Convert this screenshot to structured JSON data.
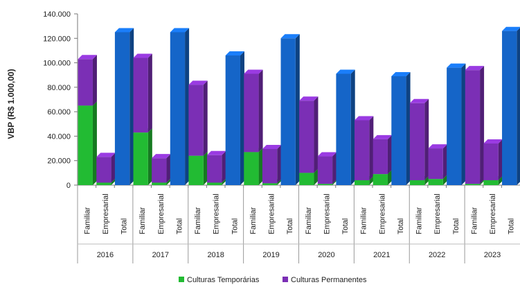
{
  "chart_data": {
    "type": "bar",
    "stacked": true,
    "style": "3d",
    "title": "",
    "ylabel": "VBP (R$ 1.000,00)",
    "xlabel": "",
    "ylim": [
      0,
      140000
    ],
    "yticks": [
      0,
      20000,
      40000,
      60000,
      80000,
      100000,
      120000,
      140000
    ],
    "ytick_labels": [
      "0",
      "20.000",
      "40.000",
      "60.000",
      "80.000",
      "100.000",
      "120.000",
      "140.000"
    ],
    "grid": false,
    "legend_position": "bottom",
    "groups": [
      "2016",
      "2017",
      "2018",
      "2019",
      "2020",
      "2021",
      "2022",
      "2023"
    ],
    "categories": [
      "Familiar",
      "Empresarial",
      "Total"
    ],
    "series": [
      {
        "name": "Culturas Temporárias",
        "color": "#22bb33",
        "values": [
          [
            65000,
            2000,
            0
          ],
          [
            43000,
            2000,
            0
          ],
          [
            24000,
            2000,
            0
          ],
          [
            27000,
            1500,
            0
          ],
          [
            10000,
            1000,
            0
          ],
          [
            4000,
            9000,
            0
          ],
          [
            4000,
            5000,
            0
          ],
          [
            1000,
            4000,
            0
          ]
        ]
      },
      {
        "name": "Culturas Permanentes",
        "color": "#7b2fb5",
        "values": [
          [
            38000,
            21000,
            0
          ],
          [
            61000,
            20000,
            0
          ],
          [
            58000,
            22500,
            0
          ],
          [
            64000,
            28000,
            0
          ],
          [
            59000,
            22500,
            0
          ],
          [
            49000,
            28500,
            0
          ],
          [
            63000,
            25000,
            0
          ],
          [
            93000,
            30000,
            0
          ]
        ]
      },
      {
        "name": "Total",
        "color": "#1565c8",
        "values": [
          [
            0,
            0,
            125000
          ],
          [
            0,
            0,
            125000
          ],
          [
            0,
            0,
            106000
          ],
          [
            0,
            0,
            120000
          ],
          [
            0,
            0,
            91000
          ],
          [
            0,
            0,
            89000
          ],
          [
            0,
            0,
            96000
          ],
          [
            0,
            0,
            126000
          ]
        ]
      }
    ],
    "legend": [
      "Culturas Temporárias",
      "Culturas Permanentes"
    ]
  }
}
